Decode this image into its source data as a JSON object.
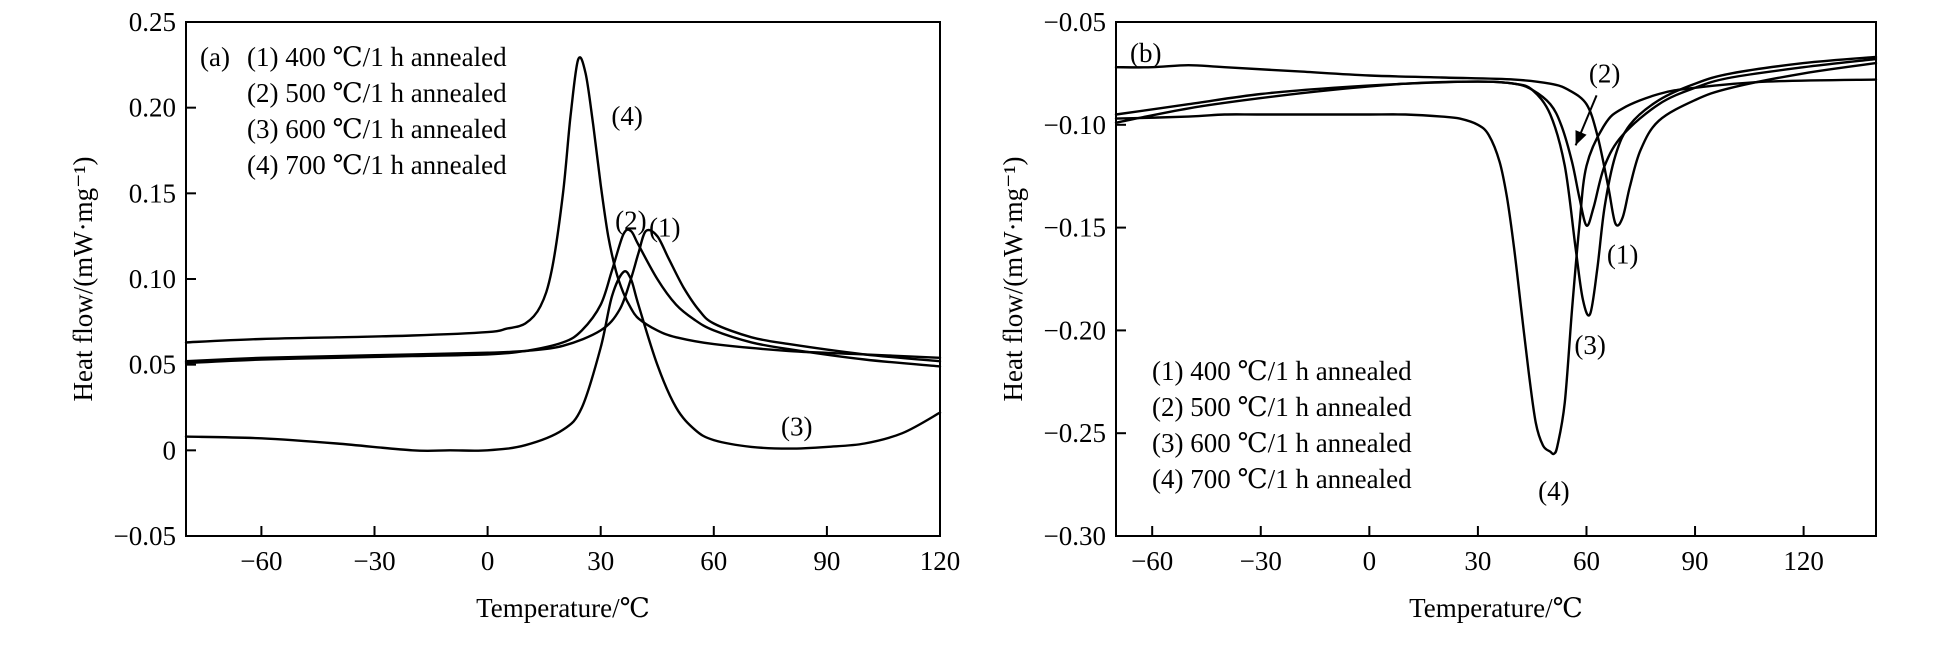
{
  "chart_data": [
    {
      "panel": "(a)",
      "type": "line",
      "xlabel": "Temperature/℃",
      "ylabel": "Heat flow/(mW·mg⁻¹)",
      "xlim": [
        -80,
        120
      ],
      "ylim": [
        -0.05,
        0.25
      ],
      "xticks": [
        -60,
        -30,
        0,
        30,
        60,
        90,
        120
      ],
      "xtick_labels": [
        "−60",
        "−30",
        "0",
        "30",
        "60",
        "90",
        "120"
      ],
      "yticks": [
        -0.05,
        0,
        0.05,
        0.1,
        0.15,
        0.2,
        0.25
      ],
      "ytick_labels": [
        "−0.05",
        "0",
        "0.05",
        "0.10",
        "0.15",
        "0.20",
        "0.25"
      ],
      "legend_placement": "top-left",
      "legend": [
        "(1) 400 ℃/1 h annealed",
        "(2) 500 ℃/1 h annealed",
        "(3) 600 ℃/1 h annealed",
        "(4) 700 ℃/1 h annealed"
      ],
      "series": [
        {
          "label": "(1)",
          "x": [
            -80,
            -60,
            -40,
            -20,
            0,
            10,
            20,
            30,
            35,
            38,
            40,
            42,
            45,
            48,
            52,
            56,
            60,
            70,
            80,
            100,
            120
          ],
          "y": [
            0.052,
            0.054,
            0.055,
            0.056,
            0.057,
            0.058,
            0.061,
            0.07,
            0.082,
            0.1,
            0.115,
            0.128,
            0.125,
            0.112,
            0.095,
            0.082,
            0.074,
            0.066,
            0.062,
            0.056,
            0.052
          ],
          "label_at": [
            47,
            0.13
          ]
        },
        {
          "label": "(2)",
          "x": [
            -80,
            -60,
            -40,
            -20,
            0,
            10,
            20,
            25,
            30,
            33,
            36,
            38,
            40,
            45,
            50,
            55,
            60,
            70,
            80,
            100,
            120
          ],
          "y": [
            0.051,
            0.053,
            0.054,
            0.055,
            0.056,
            0.058,
            0.063,
            0.07,
            0.085,
            0.105,
            0.126,
            0.128,
            0.12,
            0.1,
            0.085,
            0.076,
            0.07,
            0.063,
            0.059,
            0.053,
            0.049
          ],
          "label_at": [
            38,
            0.134
          ]
        },
        {
          "label": "(3)",
          "x": [
            -80,
            -60,
            -40,
            -20,
            -10,
            0,
            10,
            20,
            25,
            30,
            33,
            36,
            38,
            40,
            45,
            50,
            55,
            60,
            70,
            80,
            90,
            100,
            110,
            120
          ],
          "y": [
            0.008,
            0.007,
            0.004,
            0.0,
            0.0,
            0.0,
            0.003,
            0.012,
            0.025,
            0.06,
            0.09,
            0.104,
            0.1,
            0.085,
            0.05,
            0.025,
            0.012,
            0.006,
            0.002,
            0.001,
            0.002,
            0.004,
            0.01,
            0.022
          ],
          "label_at": [
            82,
            0.014
          ]
        },
        {
          "label": "(4)",
          "x": [
            -80,
            -60,
            -40,
            -20,
            0,
            5,
            10,
            14,
            17,
            20,
            22,
            24,
            26,
            28,
            30,
            32,
            34,
            36,
            38,
            40,
            45,
            50,
            60,
            80,
            100,
            120
          ],
          "y": [
            0.063,
            0.065,
            0.066,
            0.067,
            0.069,
            0.071,
            0.074,
            0.084,
            0.105,
            0.15,
            0.195,
            0.228,
            0.22,
            0.19,
            0.155,
            0.125,
            0.105,
            0.092,
            0.083,
            0.077,
            0.07,
            0.066,
            0.062,
            0.058,
            0.056,
            0.054
          ],
          "label_at": [
            37,
            0.195
          ]
        }
      ]
    },
    {
      "panel": "(b)",
      "type": "line",
      "xlabel": "Temperature/℃",
      "ylabel": "Heat flow/(mW·mg⁻¹)",
      "xlim": [
        -70,
        140
      ],
      "ylim": [
        -0.3,
        -0.05
      ],
      "xticks": [
        -60,
        -30,
        0,
        30,
        60,
        90,
        120
      ],
      "xtick_labels": [
        "−60",
        "−30",
        "0",
        "30",
        "60",
        "90",
        "120"
      ],
      "yticks": [
        -0.3,
        -0.25,
        -0.2,
        -0.15,
        -0.1,
        -0.05
      ],
      "ytick_labels": [
        "−0.30",
        "−0.25",
        "−0.20",
        "−0.15",
        "−0.10",
        "−0.05"
      ],
      "legend_placement": "bottom-left",
      "legend": [
        "(1) 400 ℃/1 h annealed",
        "(2) 500 ℃/1 h annealed",
        "(3) 600 ℃/1 h annealed",
        "(4) 700 ℃/1 h annealed"
      ],
      "series": [
        {
          "label": "(1)",
          "x": [
            -70,
            -60,
            -50,
            -40,
            -20,
            0,
            20,
            40,
            50,
            55,
            60,
            63,
            66,
            68,
            70,
            72,
            75,
            80,
            90,
            100,
            120,
            140
          ],
          "y": [
            -0.072,
            -0.072,
            -0.071,
            -0.072,
            -0.074,
            -0.076,
            -0.077,
            -0.078,
            -0.08,
            -0.083,
            -0.09,
            -0.105,
            -0.13,
            -0.148,
            -0.145,
            -0.13,
            -0.112,
            -0.098,
            -0.088,
            -0.082,
            -0.075,
            -0.07
          ],
          "label_at": [
            70,
            -0.163
          ]
        },
        {
          "label": "(2)",
          "x": [
            -70,
            -50,
            -30,
            -10,
            10,
            30,
            40,
            45,
            50,
            53,
            56,
            58,
            60,
            62,
            65,
            70,
            80,
            90,
            100,
            120,
            140
          ],
          "y": [
            -0.099,
            -0.092,
            -0.087,
            -0.083,
            -0.08,
            -0.079,
            -0.08,
            -0.083,
            -0.09,
            -0.1,
            -0.118,
            -0.135,
            -0.149,
            -0.14,
            -0.12,
            -0.105,
            -0.09,
            -0.082,
            -0.077,
            -0.072,
            -0.068
          ],
          "label_at": [
            65,
            -0.075
          ],
          "arrow_to": [
            57,
            -0.11
          ]
        },
        {
          "label": "(3)",
          "x": [
            -70,
            -50,
            -30,
            -10,
            10,
            30,
            40,
            45,
            50,
            54,
            57,
            59,
            61,
            63,
            65,
            68,
            72,
            80,
            90,
            100,
            120,
            140
          ],
          "y": [
            -0.095,
            -0.09,
            -0.085,
            -0.082,
            -0.08,
            -0.079,
            -0.08,
            -0.083,
            -0.095,
            -0.12,
            -0.16,
            -0.185,
            -0.192,
            -0.17,
            -0.14,
            -0.115,
            -0.1,
            -0.088,
            -0.08,
            -0.075,
            -0.07,
            -0.067
          ],
          "label_at": [
            61,
            -0.207
          ]
        },
        {
          "label": "(4)",
          "x": [
            -70,
            -50,
            -40,
            -30,
            -10,
            0,
            10,
            20,
            25,
            30,
            33,
            36,
            38,
            40,
            42,
            44,
            46,
            48,
            50,
            51,
            52,
            54,
            56,
            58,
            60,
            65,
            70,
            80,
            90,
            110,
            140
          ],
          "y": [
            -0.097,
            -0.096,
            -0.095,
            -0.095,
            -0.095,
            -0.095,
            -0.095,
            -0.096,
            -0.097,
            -0.1,
            -0.105,
            -0.118,
            -0.135,
            -0.16,
            -0.19,
            -0.22,
            -0.245,
            -0.256,
            -0.259,
            -0.26,
            -0.256,
            -0.235,
            -0.19,
            -0.15,
            -0.12,
            -0.1,
            -0.092,
            -0.085,
            -0.082,
            -0.079,
            -0.078
          ],
          "label_at": [
            51,
            -0.278
          ]
        }
      ]
    }
  ]
}
